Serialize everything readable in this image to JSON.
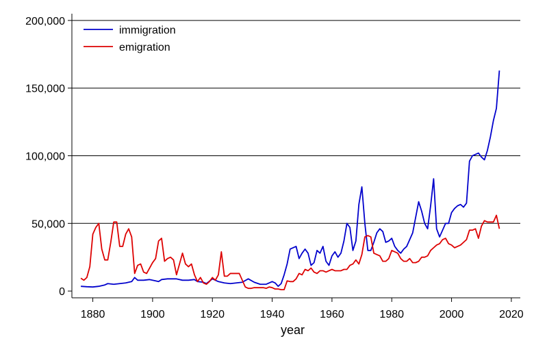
{
  "chart_data": {
    "type": "line",
    "title": "",
    "xlabel": "year",
    "ylabel": "",
    "xlim": [
      1873,
      2023
    ],
    "ylim": [
      -5000,
      205000
    ],
    "x_ticks": [
      1880,
      1900,
      1920,
      1940,
      1960,
      1980,
      2000,
      2020
    ],
    "y_ticks": [
      0,
      50000,
      100000,
      150000,
      200000
    ],
    "y_tick_labels": [
      "0",
      "50,000",
      "100,000",
      "150,000",
      "200,000"
    ],
    "gridlines": "horizontal",
    "legend_position": "top-left",
    "series": [
      {
        "name": "immigration",
        "color": "#0000cc",
        "points": [
          [
            1876,
            3500
          ],
          [
            1878,
            3200
          ],
          [
            1880,
            3000
          ],
          [
            1882,
            3500
          ],
          [
            1884,
            4500
          ],
          [
            1885,
            5500
          ],
          [
            1887,
            5000
          ],
          [
            1889,
            5500
          ],
          [
            1891,
            6000
          ],
          [
            1893,
            7000
          ],
          [
            1894,
            10000
          ],
          [
            1895,
            8000
          ],
          [
            1897,
            8000
          ],
          [
            1899,
            8500
          ],
          [
            1901,
            7500
          ],
          [
            1902,
            7000
          ],
          [
            1903,
            8500
          ],
          [
            1905,
            9000
          ],
          [
            1908,
            9000
          ],
          [
            1910,
            8000
          ],
          [
            1912,
            8000
          ],
          [
            1914,
            8500
          ],
          [
            1915,
            7000
          ],
          [
            1917,
            6500
          ],
          [
            1918,
            5500
          ],
          [
            1920,
            9000
          ],
          [
            1922,
            7000
          ],
          [
            1924,
            6000
          ],
          [
            1926,
            5500
          ],
          [
            1928,
            6000
          ],
          [
            1930,
            6500
          ],
          [
            1932,
            9000
          ],
          [
            1934,
            6500
          ],
          [
            1936,
            5000
          ],
          [
            1938,
            5000
          ],
          [
            1940,
            7000
          ],
          [
            1941,
            6000
          ],
          [
            1942,
            3500
          ],
          [
            1943,
            5500
          ],
          [
            1944,
            12000
          ],
          [
            1945,
            20000
          ],
          [
            1946,
            31000
          ],
          [
            1948,
            33000
          ],
          [
            1949,
            24000
          ],
          [
            1950,
            28000
          ],
          [
            1951,
            31000
          ],
          [
            1952,
            28000
          ],
          [
            1953,
            19000
          ],
          [
            1954,
            21000
          ],
          [
            1955,
            30000
          ],
          [
            1956,
            28000
          ],
          [
            1957,
            33000
          ],
          [
            1958,
            22000
          ],
          [
            1959,
            19000
          ],
          [
            1960,
            26000
          ],
          [
            1961,
            29000
          ],
          [
            1962,
            25000
          ],
          [
            1963,
            28000
          ],
          [
            1964,
            37000
          ],
          [
            1965,
            50000
          ],
          [
            1966,
            47000
          ],
          [
            1967,
            30000
          ],
          [
            1968,
            37000
          ],
          [
            1969,
            64000
          ],
          [
            1970,
            77000
          ],
          [
            1971,
            50000
          ],
          [
            1972,
            30000
          ],
          [
            1973,
            30000
          ],
          [
            1974,
            36000
          ],
          [
            1975,
            43000
          ],
          [
            1976,
            46000
          ],
          [
            1977,
            44000
          ],
          [
            1978,
            36000
          ],
          [
            1979,
            37000
          ],
          [
            1980,
            39000
          ],
          [
            1981,
            33000
          ],
          [
            1982,
            30000
          ],
          [
            1983,
            28000
          ],
          [
            1984,
            31000
          ],
          [
            1985,
            33000
          ],
          [
            1987,
            43000
          ],
          [
            1989,
            66000
          ],
          [
            1990,
            59000
          ],
          [
            1991,
            50000
          ],
          [
            1992,
            46000
          ],
          [
            1993,
            63000
          ],
          [
            1994,
            83000
          ],
          [
            1995,
            46000
          ],
          [
            1996,
            40000
          ],
          [
            1997,
            45000
          ],
          [
            1998,
            50000
          ],
          [
            1999,
            50000
          ],
          [
            2000,
            58000
          ],
          [
            2001,
            61000
          ],
          [
            2002,
            63000
          ],
          [
            2003,
            64000
          ],
          [
            2004,
            62000
          ],
          [
            2005,
            65000
          ],
          [
            2006,
            96000
          ],
          [
            2007,
            100000
          ],
          [
            2008,
            101000
          ],
          [
            2009,
            102000
          ],
          [
            2010,
            99000
          ],
          [
            2011,
            97000
          ],
          [
            2012,
            104000
          ],
          [
            2013,
            114000
          ],
          [
            2014,
            126000
          ],
          [
            2015,
            135000
          ],
          [
            2016,
            163000
          ]
        ]
      },
      {
        "name": "emigration",
        "color": "#dd0000",
        "points": [
          [
            1876,
            9500
          ],
          [
            1877,
            8000
          ],
          [
            1878,
            10000
          ],
          [
            1879,
            18000
          ],
          [
            1880,
            42000
          ],
          [
            1881,
            47000
          ],
          [
            1882,
            50000
          ],
          [
            1883,
            31000
          ],
          [
            1884,
            23000
          ],
          [
            1885,
            23000
          ],
          [
            1886,
            36000
          ],
          [
            1887,
            51000
          ],
          [
            1888,
            51000
          ],
          [
            1889,
            33000
          ],
          [
            1890,
            33000
          ],
          [
            1891,
            42000
          ],
          [
            1892,
            46000
          ],
          [
            1893,
            40000
          ],
          [
            1894,
            13000
          ],
          [
            1895,
            19000
          ],
          [
            1896,
            20000
          ],
          [
            1897,
            14000
          ],
          [
            1898,
            13000
          ],
          [
            1899,
            17000
          ],
          [
            1900,
            21000
          ],
          [
            1901,
            24000
          ],
          [
            1902,
            37000
          ],
          [
            1903,
            39000
          ],
          [
            1904,
            22000
          ],
          [
            1905,
            24000
          ],
          [
            1906,
            25000
          ],
          [
            1907,
            23000
          ],
          [
            1908,
            12000
          ],
          [
            1909,
            20000
          ],
          [
            1910,
            28000
          ],
          [
            1911,
            20000
          ],
          [
            1912,
            18000
          ],
          [
            1913,
            20000
          ],
          [
            1914,
            12000
          ],
          [
            1915,
            7000
          ],
          [
            1916,
            10000
          ],
          [
            1917,
            6000
          ],
          [
            1918,
            5000
          ],
          [
            1919,
            7000
          ],
          [
            1920,
            10000
          ],
          [
            1921,
            8000
          ],
          [
            1922,
            12000
          ],
          [
            1923,
            29000
          ],
          [
            1924,
            11000
          ],
          [
            1925,
            11000
          ],
          [
            1926,
            13000
          ],
          [
            1927,
            13000
          ],
          [
            1928,
            13000
          ],
          [
            1929,
            13000
          ],
          [
            1930,
            8000
          ],
          [
            1931,
            3000
          ],
          [
            1932,
            2000
          ],
          [
            1933,
            2000
          ],
          [
            1934,
            2500
          ],
          [
            1935,
            2500
          ],
          [
            1936,
            2500
          ],
          [
            1937,
            2500
          ],
          [
            1938,
            2000
          ],
          [
            1939,
            3000
          ],
          [
            1940,
            2500
          ],
          [
            1941,
            1500
          ],
          [
            1942,
            1500
          ],
          [
            1943,
            1000
          ],
          [
            1944,
            1000
          ],
          [
            1945,
            7500
          ],
          [
            1946,
            7000
          ],
          [
            1947,
            7000
          ],
          [
            1948,
            9000
          ],
          [
            1949,
            13000
          ],
          [
            1950,
            12000
          ],
          [
            1951,
            16000
          ],
          [
            1952,
            15000
          ],
          [
            1953,
            17000
          ],
          [
            1954,
            14000
          ],
          [
            1955,
            13000
          ],
          [
            1956,
            15000
          ],
          [
            1957,
            15000
          ],
          [
            1958,
            14000
          ],
          [
            1959,
            15000
          ],
          [
            1960,
            16000
          ],
          [
            1961,
            15000
          ],
          [
            1962,
            15000
          ],
          [
            1963,
            15000
          ],
          [
            1964,
            16000
          ],
          [
            1965,
            16000
          ],
          [
            1966,
            19000
          ],
          [
            1967,
            20000
          ],
          [
            1968,
            23000
          ],
          [
            1969,
            20000
          ],
          [
            1970,
            27000
          ],
          [
            1971,
            40000
          ],
          [
            1972,
            41000
          ],
          [
            1973,
            40000
          ],
          [
            1974,
            28000
          ],
          [
            1975,
            27000
          ],
          [
            1976,
            26000
          ],
          [
            1977,
            22000
          ],
          [
            1978,
            22000
          ],
          [
            1979,
            24000
          ],
          [
            1980,
            30000
          ],
          [
            1981,
            29000
          ],
          [
            1982,
            28000
          ],
          [
            1983,
            24000
          ],
          [
            1984,
            22000
          ],
          [
            1985,
            22000
          ],
          [
            1986,
            24000
          ],
          [
            1987,
            21000
          ],
          [
            1988,
            21000
          ],
          [
            1989,
            22000
          ],
          [
            1990,
            25000
          ],
          [
            1991,
            25000
          ],
          [
            1992,
            26000
          ],
          [
            1993,
            30000
          ],
          [
            1994,
            32000
          ],
          [
            1995,
            34000
          ],
          [
            1996,
            35000
          ],
          [
            1997,
            38000
          ],
          [
            1998,
            39000
          ],
          [
            1999,
            35000
          ],
          [
            2000,
            34000
          ],
          [
            2001,
            32000
          ],
          [
            2002,
            33000
          ],
          [
            2003,
            34000
          ],
          [
            2004,
            36000
          ],
          [
            2005,
            38000
          ],
          [
            2006,
            45000
          ],
          [
            2007,
            45000
          ],
          [
            2008,
            46000
          ],
          [
            2009,
            39000
          ],
          [
            2010,
            48000
          ],
          [
            2011,
            52000
          ],
          [
            2012,
            51000
          ],
          [
            2013,
            51000
          ],
          [
            2014,
            51000
          ],
          [
            2015,
            56000
          ],
          [
            2016,
            46000
          ]
        ]
      }
    ]
  }
}
